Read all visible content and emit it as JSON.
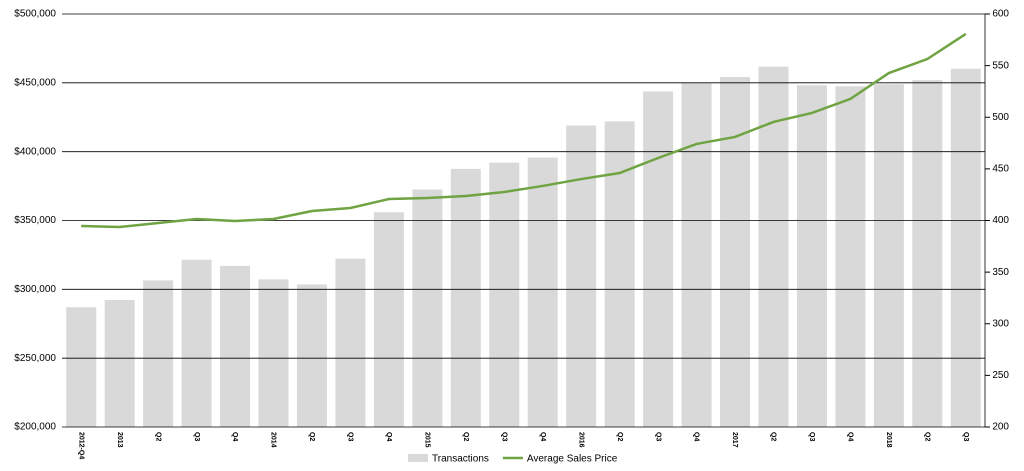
{
  "chart_data": {
    "type": "bar-line",
    "categories": [
      "2012-Q4",
      "2013",
      "Q2",
      "Q3",
      "Q4",
      "2014",
      "Q2",
      "Q3",
      "Q4",
      "2015",
      "Q2",
      "Q3",
      "Q4",
      "2016",
      "Q2",
      "Q3",
      "Q4",
      "2017",
      "Q2",
      "Q3",
      "Q4",
      "2018",
      "Q2",
      "Q3"
    ],
    "series": [
      {
        "name": "Transactions",
        "type": "bar",
        "axis": "y2",
        "color": "#d9d9d9",
        "values": [
          316,
          323,
          342,
          362,
          356,
          343,
          338,
          363,
          408,
          430,
          450,
          456,
          461,
          492,
          496,
          525,
          533,
          539,
          549,
          531,
          530,
          532,
          536,
          547
        ]
      },
      {
        "name": "Average Sales Price",
        "type": "line",
        "axis": "y",
        "color": "#70a342",
        "values": [
          346000,
          345300,
          348200,
          351100,
          349600,
          351100,
          356900,
          359100,
          365600,
          366300,
          367800,
          370700,
          375100,
          380100,
          384500,
          395400,
          405600,
          410700,
          421600,
          428100,
          438300,
          457100,
          467300,
          485500
        ]
      }
    ],
    "ylim": [
      200000,
      500000
    ],
    "yticks": [
      {
        "value": 200000,
        "label": "$200,000"
      },
      {
        "value": 250000,
        "label": "$250,000"
      },
      {
        "value": 300000,
        "label": "$300,000"
      },
      {
        "value": 350000,
        "label": "$350,000"
      },
      {
        "value": 400000,
        "label": "$400,000"
      },
      {
        "value": 450000,
        "label": "$450,000"
      },
      {
        "value": 500000,
        "label": "$500,000"
      }
    ],
    "y2lim": [
      200,
      600
    ],
    "y2ticks": [
      200,
      250,
      300,
      350,
      400,
      450,
      500,
      550,
      600
    ],
    "grid": true,
    "legend": "bottom"
  }
}
